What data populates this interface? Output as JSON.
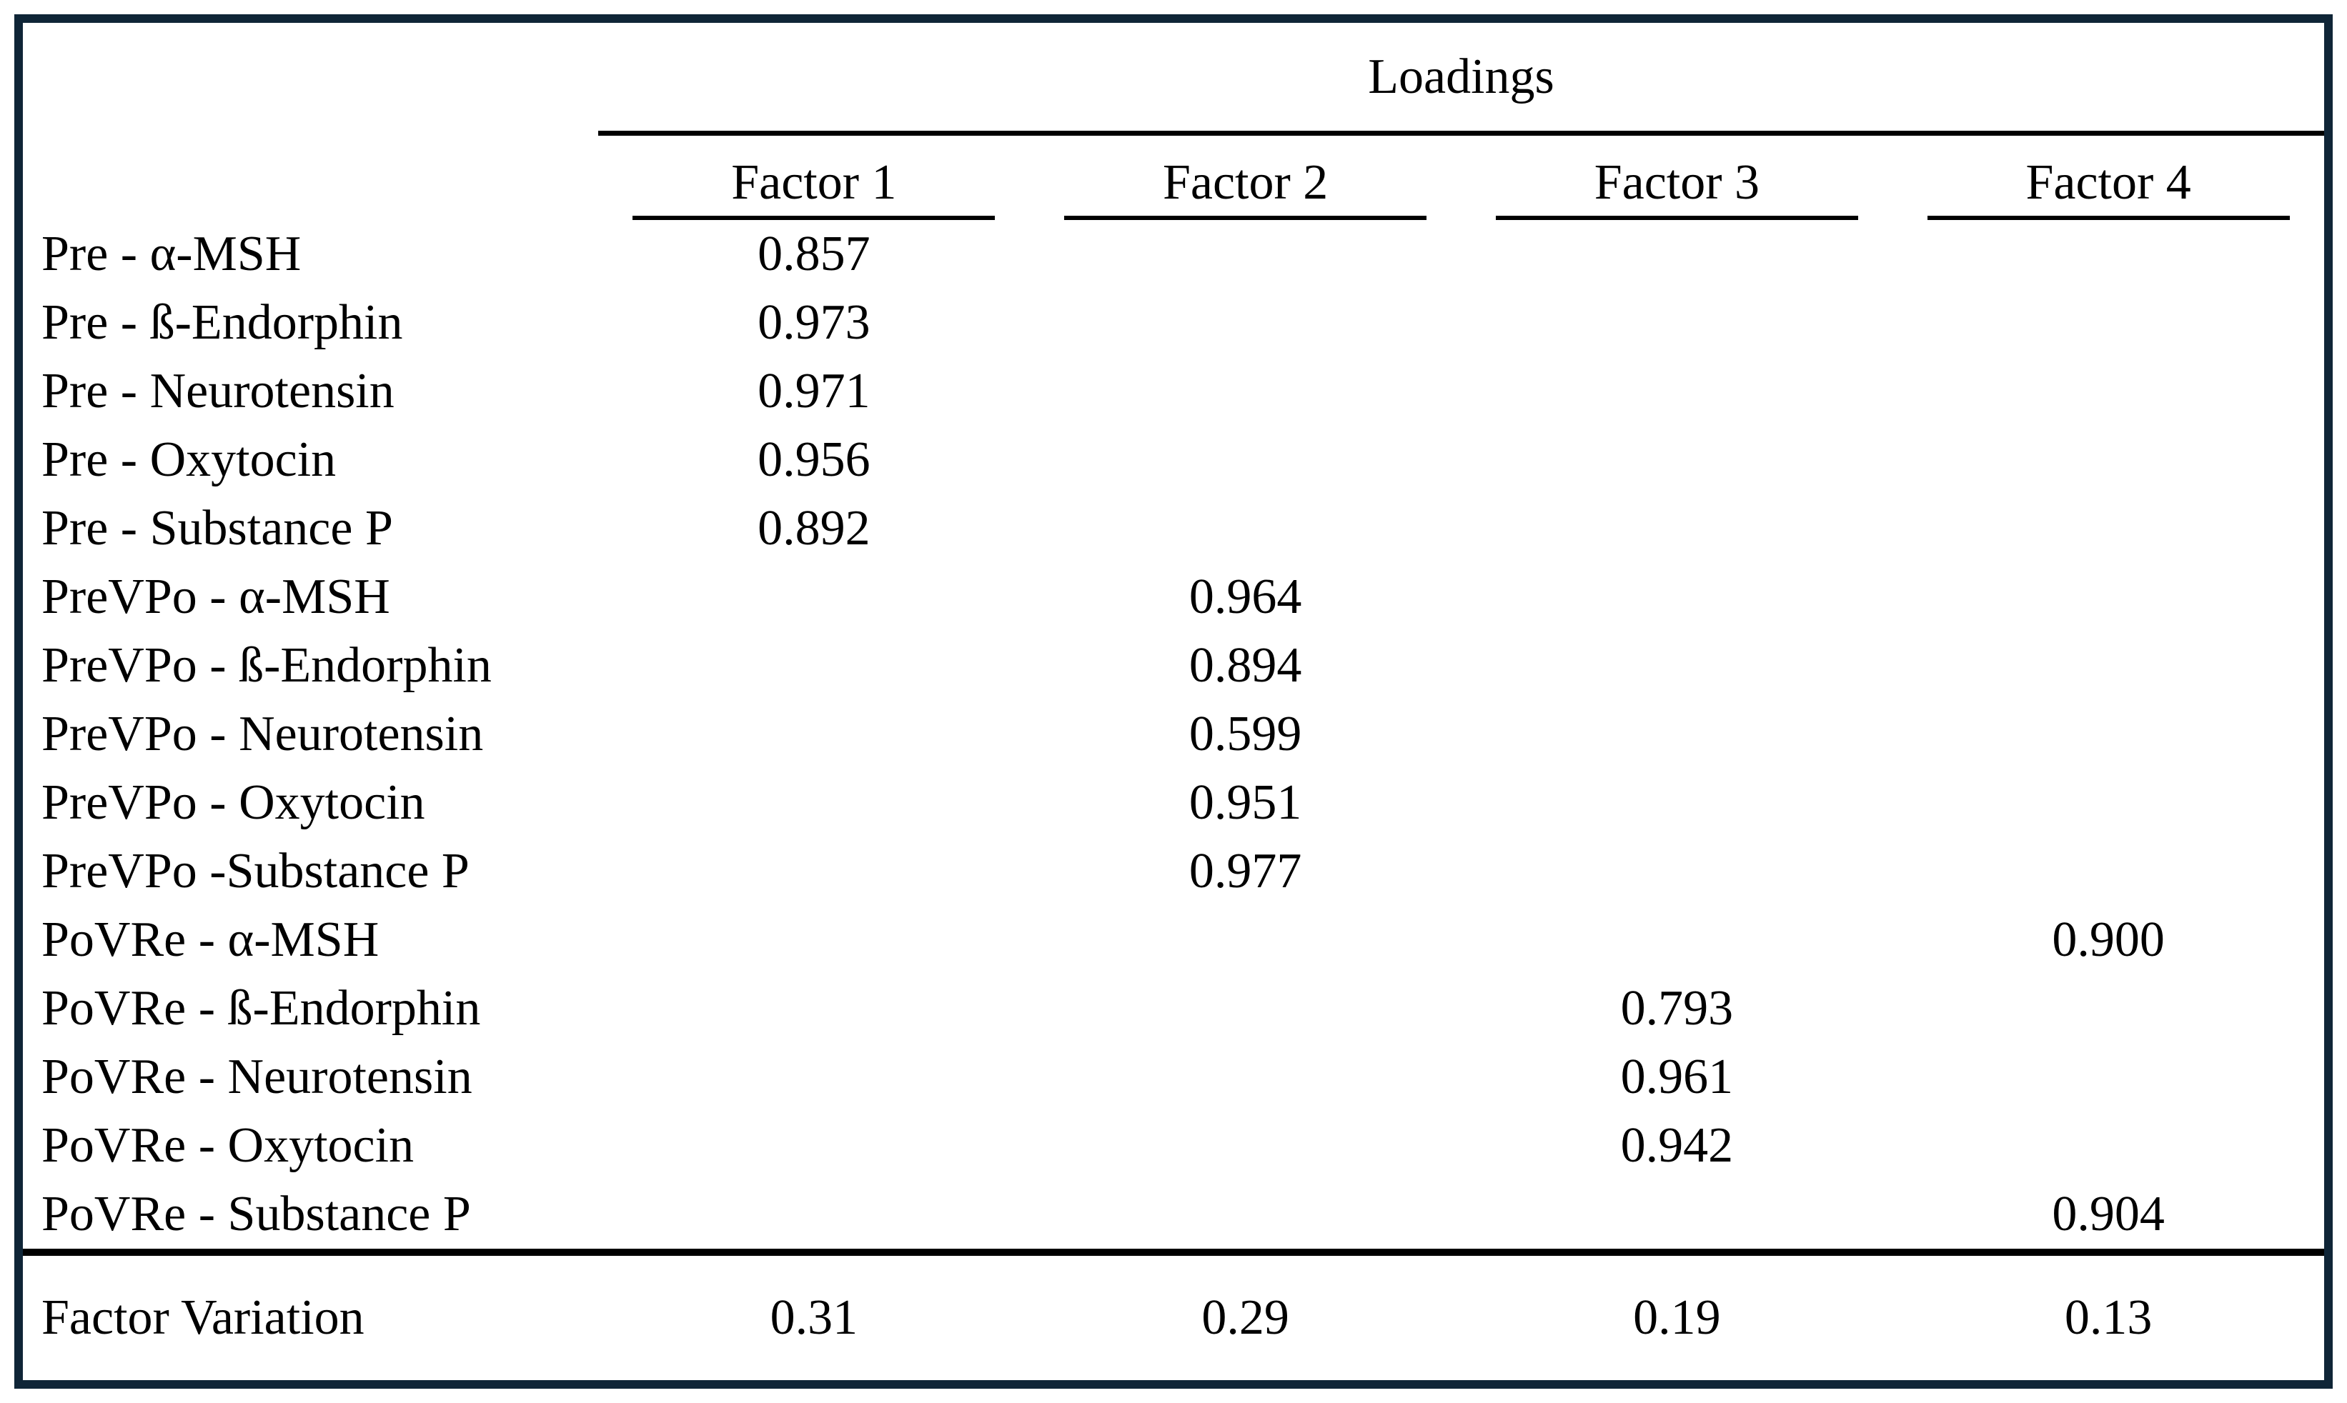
{
  "table": {
    "title": "Loadings",
    "columns": [
      {
        "label": "Factor 1"
      },
      {
        "label": "Factor 2"
      },
      {
        "label": "Factor 3"
      },
      {
        "label": "Factor 4"
      }
    ],
    "rows": [
      {
        "label": "Pre - α-MSH",
        "values": [
          "0.857",
          "",
          "",
          ""
        ]
      },
      {
        "label": "Pre - ß-Endorphin",
        "values": [
          "0.973",
          "",
          "",
          ""
        ]
      },
      {
        "label": "Pre - Neurotensin",
        "values": [
          "0.971",
          "",
          "",
          ""
        ]
      },
      {
        "label": "Pre - Oxytocin",
        "values": [
          "0.956",
          "",
          "",
          ""
        ]
      },
      {
        "label": "Pre - Substance P",
        "values": [
          "0.892",
          "",
          "",
          ""
        ]
      },
      {
        "label": "PreVPo - α-MSH",
        "values": [
          "",
          "0.964",
          "",
          ""
        ]
      },
      {
        "label": "PreVPo - ß-Endorphin",
        "values": [
          "",
          "0.894",
          "",
          ""
        ]
      },
      {
        "label": "PreVPo - Neurotensin",
        "values": [
          "",
          "0.599",
          "",
          ""
        ]
      },
      {
        "label": "PreVPo - Oxytocin",
        "values": [
          "",
          "0.951",
          "",
          ""
        ]
      },
      {
        "label": "PreVPo -Substance P",
        "values": [
          "",
          "0.977",
          "",
          ""
        ]
      },
      {
        "label": "PoVRe - α-MSH",
        "values": [
          "",
          "",
          "",
          "0.900"
        ]
      },
      {
        "label": "PoVRe - ß-Endorphin",
        "values": [
          "",
          "",
          "0.793",
          ""
        ]
      },
      {
        "label": "PoVRe - Neurotensin",
        "values": [
          "",
          "",
          "0.961",
          ""
        ]
      },
      {
        "label": "PoVRe - Oxytocin",
        "values": [
          "",
          "",
          "0.942",
          ""
        ]
      },
      {
        "label": "PoVRe - Substance P",
        "values": [
          "",
          "",
          "",
          "0.904"
        ]
      }
    ],
    "footer": {
      "label": "Factor Variation",
      "values": [
        "0.31",
        "0.29",
        "0.19",
        "0.13"
      ]
    }
  },
  "colors": {
    "frame_border": "#0f2537",
    "rule": "#000000",
    "text": "#000000",
    "background": "#ffffff"
  }
}
